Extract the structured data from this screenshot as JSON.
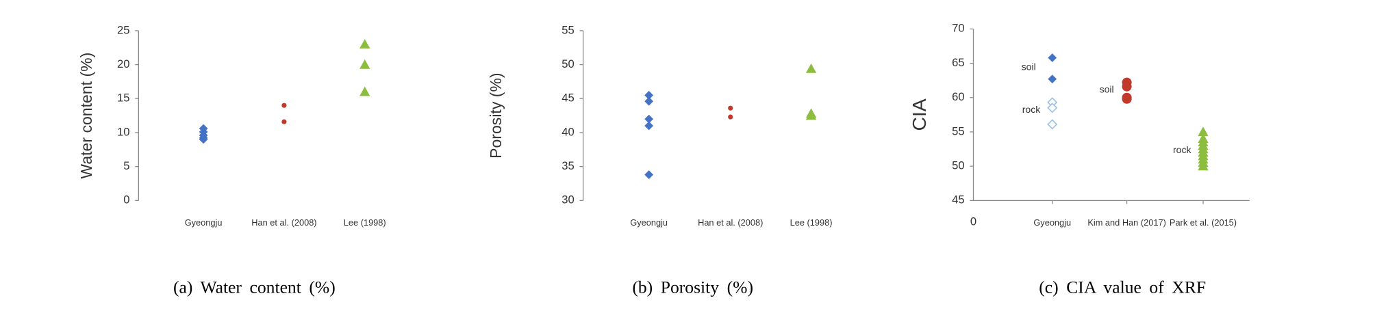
{
  "chart_data": [
    {
      "type": "strip",
      "ylabel": "Water content (%)",
      "caption": "(a)  Water content  (%)",
      "categories": [
        "Gyeongju",
        "Han et al. (2008)",
        "Lee (1998)"
      ],
      "ylim": [
        0,
        25
      ],
      "yticks": [
        0,
        5,
        10,
        15,
        20,
        25
      ],
      "series": [
        {
          "color": "#4472c4",
          "marker": "diamond",
          "values": [
            [
              10.6,
              10.1,
              9.6,
              9.2,
              9.0
            ],
            null,
            null
          ]
        },
        {
          "color": "#c0392b",
          "marker": "dot",
          "values": [
            null,
            [
              14.0,
              11.6
            ],
            null
          ]
        },
        {
          "color": "#8cbd3f",
          "marker": "triangle",
          "values": [
            null,
            null,
            [
              23.0,
              20.0,
              16.0
            ]
          ]
        }
      ]
    },
    {
      "type": "strip",
      "ylabel": "Porosity (%)",
      "caption": "(b)  Porosity  (%)",
      "categories": [
        "Gyeongju",
        "Han et al. (2008)",
        "Lee (1998)"
      ],
      "ylim": [
        30,
        55
      ],
      "yticks": [
        30,
        35,
        40,
        45,
        50,
        55
      ],
      "series": [
        {
          "color": "#4472c4",
          "marker": "diamond",
          "values": [
            [
              45.5,
              44.6,
              42.0,
              41.0,
              33.8
            ],
            null,
            null
          ]
        },
        {
          "color": "#c0392b",
          "marker": "dot",
          "values": [
            null,
            [
              43.6,
              42.3
            ],
            null
          ]
        },
        {
          "color": "#8cbd3f",
          "marker": "triangle",
          "values": [
            null,
            null,
            [
              49.4,
              42.8,
              42.5
            ]
          ]
        }
      ]
    },
    {
      "type": "strip",
      "ylabel": "CIA",
      "caption": "(c)  CIA  value  of  XRF",
      "categories": [
        "Gyeongju",
        "Kim and Han (2017)",
        "Park et al. (2015)"
      ],
      "ylim": [
        45,
        70
      ],
      "yticks": [
        45,
        50,
        55,
        60,
        65,
        70
      ],
      "xticks": [
        0
      ],
      "xaxis": true,
      "annotations": [
        "soil",
        "rock",
        "soil",
        "rock"
      ],
      "series": [
        {
          "color": "#4472c4",
          "marker": "diamond",
          "values": [
            [
              65.8,
              62.7
            ],
            null,
            null
          ]
        },
        {
          "color": "#9dc3e6",
          "marker": "diamond-open",
          "values": [
            [
              59.3,
              58.5,
              56.1
            ],
            null,
            null
          ]
        },
        {
          "color": "#c0392b",
          "marker": "circle",
          "values": [
            null,
            [
              62.2,
              61.6,
              60.0,
              59.8
            ],
            null
          ]
        },
        {
          "color": "#8cbd3f",
          "marker": "triangle",
          "values": [
            null,
            null,
            [
              55.0,
              54.0,
              53.5,
              53.0,
              52.5,
              52.0,
              51.5,
              51.0,
              50.5,
              50.0
            ]
          ]
        }
      ]
    }
  ]
}
